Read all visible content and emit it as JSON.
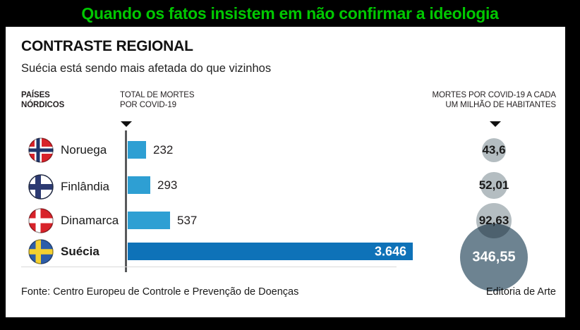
{
  "banner": {
    "title": "Quando os fatos insistem em não confirmar a ideologia",
    "color": "#00c800"
  },
  "infographic": {
    "title": "CONTRASTE REGIONAL",
    "subtitle": "Suécia está sendo mais afetada do que vizinhos",
    "columns": {
      "countries": "PAÍSES\nNÓRDICOS",
      "total": "TOTAL DE MORTES\nPOR COVID-19",
      "rate": "MORTES POR COVID-19 A CADA\nUM MILHÃO DE HABITANTES"
    },
    "footer": {
      "source": "Fonte: Centro Europeu de Controle e Prevenção de Doenças",
      "credit": "Editoria de Arte"
    }
  },
  "chart_data": {
    "type": "bar",
    "title": "CONTRASTE REGIONAL",
    "subtitle": "Suécia está sendo mais afetada do que vizinhos",
    "orientation": "horizontal",
    "grid": false,
    "categories": [
      "Noruega",
      "Finlândia",
      "Dinamarca",
      "Suécia"
    ],
    "series": [
      {
        "name": "Total de mortes por Covid-19",
        "values": [
          232,
          293,
          537,
          3646
        ]
      },
      {
        "name": "Mortes por Covid-19 a cada um milhão de habitantes",
        "values": [
          43.6,
          52.01,
          92.63,
          346.55
        ]
      }
    ],
    "xlim": [
      0,
      3646
    ],
    "highlight_category": "Suécia",
    "colors": {
      "bar": "#2e9fd3",
      "bar_highlight": "#0e72b8",
      "bubble": "#b4bdc1",
      "bubble_highlight": "#6d8391",
      "axis": "#58595b",
      "banner_green": "#00c800"
    },
    "rows": [
      {
        "country": "Noruega",
        "flag": "norway",
        "total": 232,
        "total_label": "232",
        "rate": 43.6,
        "rate_label": "43,6",
        "highlight": false
      },
      {
        "country": "Finlândia",
        "flag": "finland",
        "total": 293,
        "total_label": "293",
        "rate": 52.01,
        "rate_label": "52,01",
        "highlight": false
      },
      {
        "country": "Dinamarca",
        "flag": "denmark",
        "total": 537,
        "total_label": "537",
        "rate": 92.63,
        "rate_label": "92,63",
        "highlight": false
      },
      {
        "country": "Suécia",
        "flag": "sweden",
        "total": 3646,
        "total_label": "3.646",
        "rate": 346.55,
        "rate_label": "346,55",
        "highlight": true
      }
    ]
  }
}
